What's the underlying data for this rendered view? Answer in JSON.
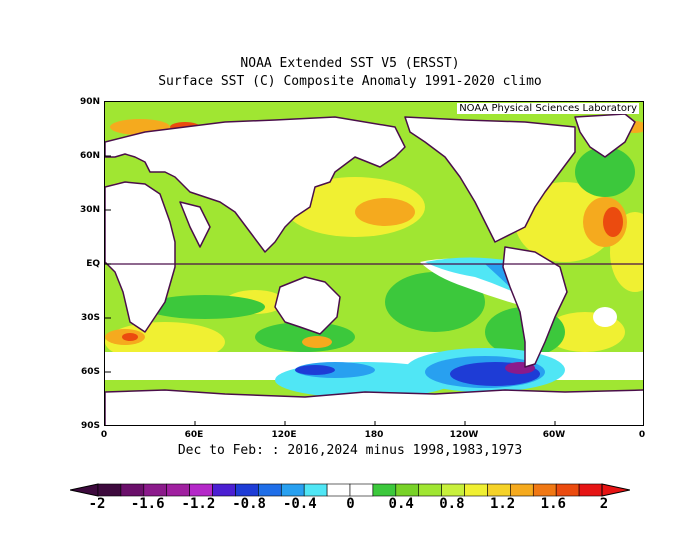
{
  "title_line1": "NOAA Extended SST V5 (ERSST)",
  "title_line2": "Surface SST (C) Composite Anomaly 1991-2020 climo",
  "credit": "NOAA Physical Sciences Laboratory",
  "subtitle": "Dec to Feb: : 2016,2024 minus 1998,1983,1973",
  "lat_labels": [
    "90N",
    "60N",
    "30N",
    "EQ",
    "30S",
    "60S",
    "90S"
  ],
  "lon_labels": [
    "0",
    "60E",
    "120E",
    "180",
    "120W",
    "60W",
    "0"
  ],
  "colorbar": {
    "colors": [
      "#3d0a3d",
      "#6a0f6a",
      "#8b1a8b",
      "#a020a0",
      "#b428c8",
      "#4b1fd2",
      "#1e3cd6",
      "#1f6ee8",
      "#28a0f0",
      "#50e6f5",
      "#ffffff",
      "#ffffff",
      "#3cc83c",
      "#78d228",
      "#a0e632",
      "#c8f03c",
      "#f0f032",
      "#f5d228",
      "#f5aa1e",
      "#f07814",
      "#eb4b0f",
      "#e61414"
    ],
    "labels": [
      "-2",
      "-1.6",
      "-1.2",
      "-0.8",
      "-0.4",
      "0",
      "0.4",
      "0.8",
      "1.2",
      "1.6",
      "2"
    ]
  }
}
